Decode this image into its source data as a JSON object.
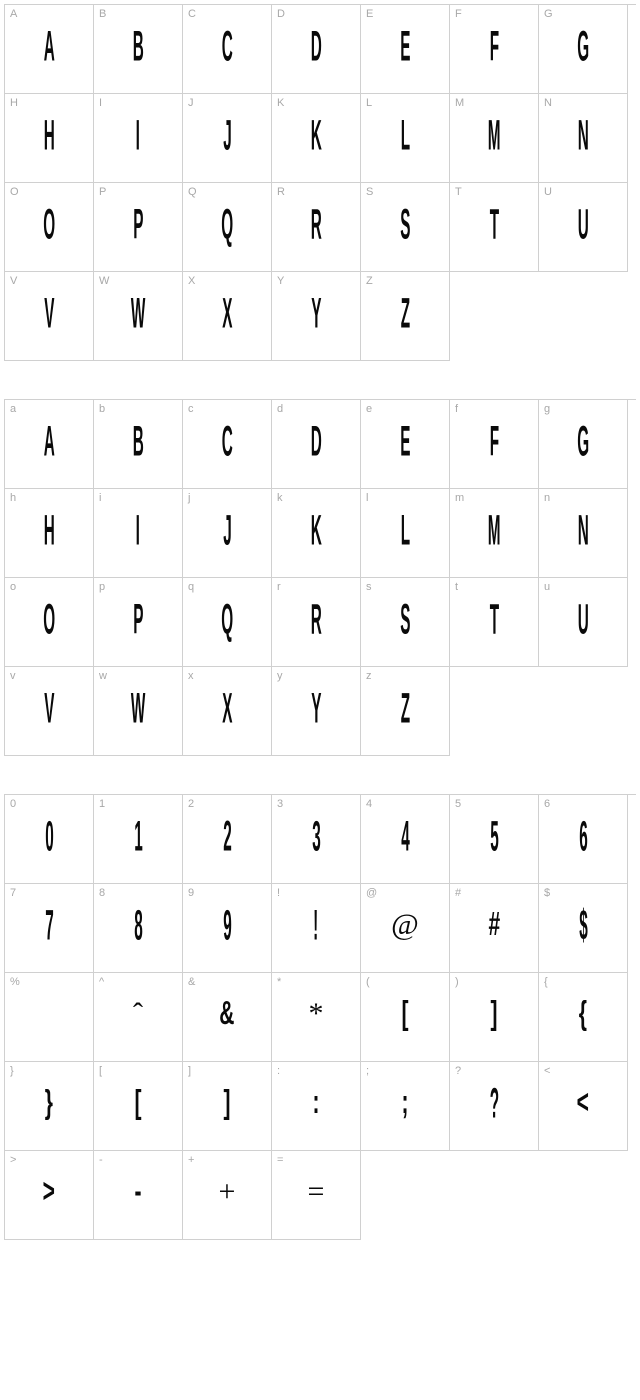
{
  "uppercase": [
    {
      "label": "A",
      "glyph": "A"
    },
    {
      "label": "B",
      "glyph": "B"
    },
    {
      "label": "C",
      "glyph": "C"
    },
    {
      "label": "D",
      "glyph": "D"
    },
    {
      "label": "E",
      "glyph": "E"
    },
    {
      "label": "F",
      "glyph": "F"
    },
    {
      "label": "G",
      "glyph": "G"
    },
    {
      "label": "H",
      "glyph": "H"
    },
    {
      "label": "I",
      "glyph": "I"
    },
    {
      "label": "J",
      "glyph": "J"
    },
    {
      "label": "K",
      "glyph": "K"
    },
    {
      "label": "L",
      "glyph": "L"
    },
    {
      "label": "M",
      "glyph": "M"
    },
    {
      "label": "N",
      "glyph": "N"
    },
    {
      "label": "O",
      "glyph": "O"
    },
    {
      "label": "P",
      "glyph": "P"
    },
    {
      "label": "Q",
      "glyph": "Q"
    },
    {
      "label": "R",
      "glyph": "R"
    },
    {
      "label": "S",
      "glyph": "S"
    },
    {
      "label": "T",
      "glyph": "T"
    },
    {
      "label": "U",
      "glyph": "U"
    },
    {
      "label": "V",
      "glyph": "V"
    },
    {
      "label": "W",
      "glyph": "W"
    },
    {
      "label": "X",
      "glyph": "X"
    },
    {
      "label": "Y",
      "glyph": "Y"
    },
    {
      "label": "Z",
      "glyph": "Z"
    }
  ],
  "lowercase": [
    {
      "label": "a",
      "glyph": "A"
    },
    {
      "label": "b",
      "glyph": "B"
    },
    {
      "label": "c",
      "glyph": "C"
    },
    {
      "label": "d",
      "glyph": "D"
    },
    {
      "label": "e",
      "glyph": "E"
    },
    {
      "label": "f",
      "glyph": "F"
    },
    {
      "label": "g",
      "glyph": "G"
    },
    {
      "label": "h",
      "glyph": "H"
    },
    {
      "label": "i",
      "glyph": "I"
    },
    {
      "label": "j",
      "glyph": "J"
    },
    {
      "label": "k",
      "glyph": "K"
    },
    {
      "label": "l",
      "glyph": "L"
    },
    {
      "label": "m",
      "glyph": "M"
    },
    {
      "label": "n",
      "glyph": "N"
    },
    {
      "label": "o",
      "glyph": "O"
    },
    {
      "label": "p",
      "glyph": "P"
    },
    {
      "label": "q",
      "glyph": "Q"
    },
    {
      "label": "r",
      "glyph": "R"
    },
    {
      "label": "s",
      "glyph": "S"
    },
    {
      "label": "t",
      "glyph": "T"
    },
    {
      "label": "u",
      "glyph": "U"
    },
    {
      "label": "v",
      "glyph": "V"
    },
    {
      "label": "w",
      "glyph": "W"
    },
    {
      "label": "x",
      "glyph": "X"
    },
    {
      "label": "y",
      "glyph": "Y"
    },
    {
      "label": "z",
      "glyph": "Z"
    }
  ],
  "symbols": [
    {
      "label": "0",
      "glyph": "0",
      "style": "condensed"
    },
    {
      "label": "1",
      "glyph": "1",
      "style": "condensed"
    },
    {
      "label": "2",
      "glyph": "2",
      "style": "condensed"
    },
    {
      "label": "3",
      "glyph": "3",
      "style": "condensed"
    },
    {
      "label": "4",
      "glyph": "4",
      "style": "condensed"
    },
    {
      "label": "5",
      "glyph": "5",
      "style": "condensed"
    },
    {
      "label": "6",
      "glyph": "6",
      "style": "condensed"
    },
    {
      "label": "7",
      "glyph": "7",
      "style": "condensed"
    },
    {
      "label": "8",
      "glyph": "8",
      "style": "condensed"
    },
    {
      "label": "9",
      "glyph": "9",
      "style": "condensed"
    },
    {
      "label": "!",
      "glyph": "!",
      "style": "condensed"
    },
    {
      "label": "@",
      "glyph": "@",
      "style": "normal"
    },
    {
      "label": "#",
      "glyph": "#",
      "style": "semi"
    },
    {
      "label": "$",
      "glyph": "$",
      "style": "condensed"
    },
    {
      "label": "%",
      "glyph": "",
      "style": "condensed"
    },
    {
      "label": "^",
      "glyph": "ˆ",
      "style": "normal"
    },
    {
      "label": "&",
      "glyph": "&",
      "style": "semi"
    },
    {
      "label": "*",
      "glyph": "*",
      "style": "normal"
    },
    {
      "label": "(",
      "glyph": "[",
      "style": "semi"
    },
    {
      "label": ")",
      "glyph": "]",
      "style": "semi"
    },
    {
      "label": "{",
      "glyph": "{",
      "style": "semi"
    },
    {
      "label": "}",
      "glyph": "}",
      "style": "semi"
    },
    {
      "label": "[",
      "glyph": "[",
      "style": "semi"
    },
    {
      "label": "]",
      "glyph": "]",
      "style": "semi"
    },
    {
      "label": ":",
      "glyph": ":",
      "style": "semi"
    },
    {
      "label": ";",
      "glyph": ";",
      "style": "semi"
    },
    {
      "label": "?",
      "glyph": "?",
      "style": "condensed"
    },
    {
      "label": "<",
      "glyph": "<",
      "style": "semi"
    },
    {
      "label": ">",
      "glyph": ">",
      "style": "semi"
    },
    {
      "label": "-",
      "glyph": "-",
      "style": "semi"
    },
    {
      "label": "+",
      "glyph": "+",
      "style": "normal"
    },
    {
      "label": "=",
      "glyph": "=",
      "style": "normal"
    }
  ],
  "colors": {
    "border": "#d0d0d0",
    "label": "#a8a8a8",
    "glyph": "#0a0a0a",
    "bg": "#ffffff"
  }
}
